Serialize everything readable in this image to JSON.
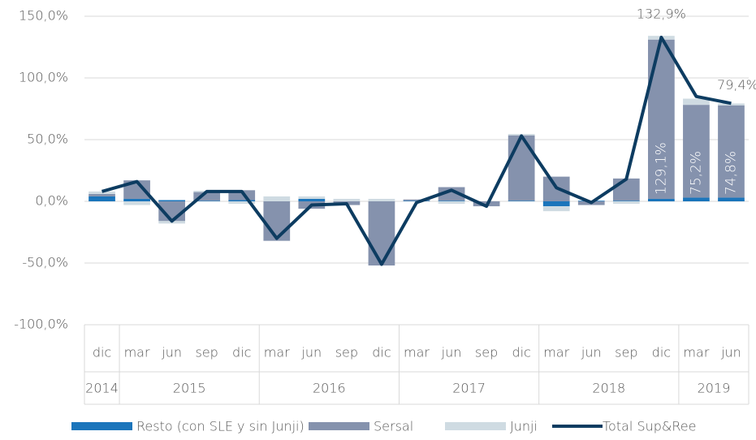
{
  "chart_data": {
    "type": "bar",
    "categories": [
      "dic",
      "mar",
      "jun",
      "sep",
      "dic",
      "mar",
      "jun",
      "sep",
      "dic",
      "mar",
      "jun",
      "sep",
      "dic",
      "mar",
      "jun",
      "sep",
      "dic",
      "mar",
      "jun"
    ],
    "years": [
      "2014",
      "2015",
      null,
      null,
      null,
      "2016",
      null,
      null,
      null,
      "2017",
      null,
      null,
      null,
      "2018",
      null,
      null,
      null,
      "2019",
      null
    ],
    "series": [
      {
        "name": "Resto (con SLE y sin Junji)",
        "color": "#1b75bb",
        "type": "bar",
        "values": [
          4,
          2,
          1,
          0.5,
          1,
          0,
          2,
          0,
          0,
          0.5,
          0.5,
          0,
          0.5,
          -4,
          0.5,
          0.5,
          2,
          3,
          3
        ]
      },
      {
        "name": "Sersal",
        "color": "#8592ad",
        "type": "bar",
        "values": [
          2,
          15,
          -16,
          7,
          8,
          -32,
          -6,
          -3,
          -52,
          1,
          11,
          -4,
          53,
          20,
          -3,
          18,
          129.1,
          75.2,
          74.8
        ],
        "value_labels": [
          null,
          null,
          null,
          null,
          null,
          null,
          null,
          null,
          null,
          null,
          null,
          null,
          null,
          null,
          null,
          null,
          "129,1%",
          "75,2%",
          "74,8%"
        ]
      },
      {
        "name": "Junji",
        "color": "#cfdbe2",
        "type": "bar",
        "values": [
          2,
          -3,
          -2,
          1,
          -2,
          4,
          2,
          2,
          2,
          0,
          -2,
          0,
          1,
          -4,
          0,
          -2,
          3,
          5,
          1.5
        ]
      },
      {
        "name": "Total Sup&Ree",
        "color": "#0d3c61",
        "type": "line",
        "values": [
          8,
          16,
          -16,
          8,
          8,
          -30,
          -3,
          -2,
          -51,
          -1,
          9,
          -4,
          53,
          11,
          -1,
          18,
          132.9,
          85,
          79.4
        ],
        "value_labels": [
          null,
          null,
          null,
          null,
          null,
          null,
          null,
          null,
          null,
          null,
          null,
          null,
          null,
          null,
          null,
          null,
          "132,9%",
          null,
          "79,4%"
        ]
      }
    ],
    "ylim": [
      -100,
      150
    ],
    "yticks": [
      {
        "value": -100,
        "label": "-100,0%"
      },
      {
        "value": -50,
        "label": "-50,0%"
      },
      {
        "value": 0,
        "label": "0,0%"
      },
      {
        "value": 50,
        "label": "50,0%"
      },
      {
        "value": 100,
        "label": "100,0%"
      },
      {
        "value": 150,
        "label": "150,0%"
      }
    ],
    "grid": true,
    "legend": "bottom"
  }
}
